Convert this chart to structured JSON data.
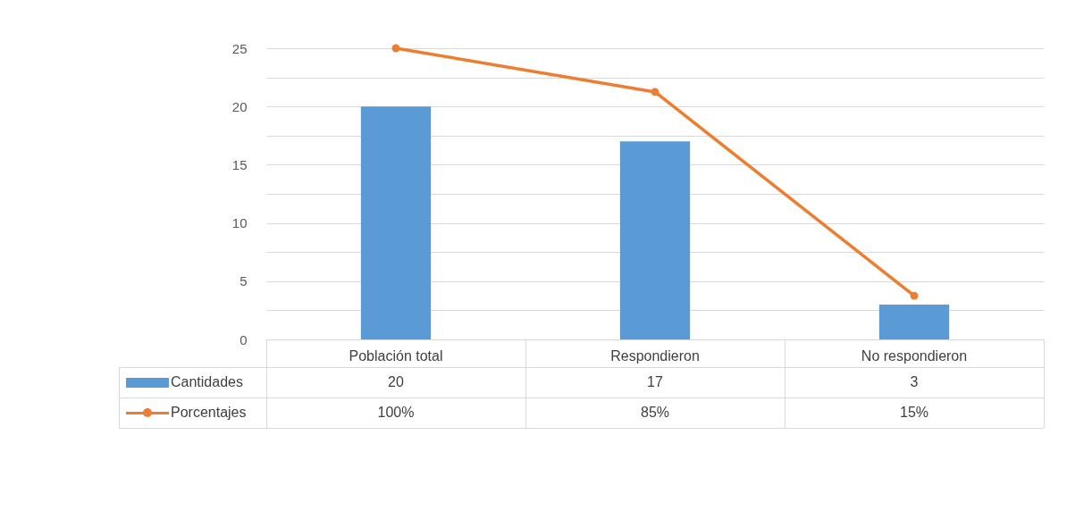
{
  "chart_data": {
    "type": "bar",
    "categories": [
      "Población total",
      "Respondieron",
      "No respondieron"
    ],
    "series": [
      {
        "name": "Cantidades",
        "type": "bar",
        "color": "#5b9bd5",
        "values": [
          20,
          17,
          3
        ],
        "value_labels": [
          "20",
          "17",
          "3"
        ]
      },
      {
        "name": "Porcentajes",
        "type": "line",
        "axis": "y2",
        "color": "#ed7d31",
        "marker": "circle",
        "values": [
          100,
          85,
          15
        ],
        "value_labels": [
          "100%",
          "85%",
          "15%"
        ]
      }
    ],
    "ylim": [
      0,
      25
    ],
    "yticks": [
      0,
      {
        "value": 2.5,
        "label": null
      },
      5,
      {
        "value": 7.5,
        "label": null
      },
      10,
      {
        "value": 12.5,
        "label": null
      },
      15,
      {
        "value": 17.5,
        "label": null
      },
      20,
      {
        "value": 22.5,
        "label": null
      },
      25
    ],
    "y2lim": [
      0,
      100
    ],
    "grid": "y",
    "legend": "bottom"
  }
}
